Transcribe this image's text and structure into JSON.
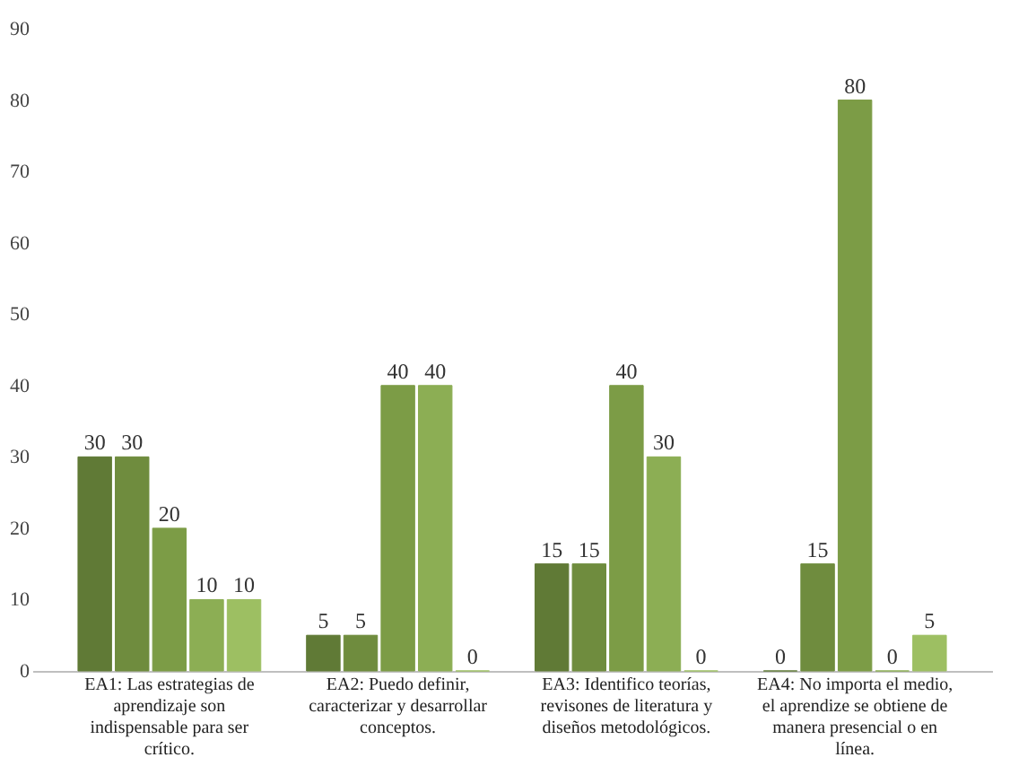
{
  "chart_data": {
    "type": "bar",
    "categories": [
      "EA1: Las estrategias de aprendizaje son indispensable para ser crítico.",
      "EA2: Puedo definir, caracterizar y desarrollar conceptos.",
      "EA3: Identifico teorías, revisones de literatura y diseños metodológicos.",
      "EA4: No importa el medio, el aprendize se obtiene de manera presencial o  en línea."
    ],
    "series": [
      {
        "color": "#607a36",
        "values": [
          30,
          5,
          15,
          0
        ]
      },
      {
        "color": "#6f8c3e",
        "values": [
          30,
          5,
          15,
          15
        ]
      },
      {
        "color": "#7c9c46",
        "values": [
          20,
          40,
          40,
          80
        ]
      },
      {
        "color": "#8cae54",
        "values": [
          10,
          40,
          30,
          0
        ]
      },
      {
        "color": "#9dbf62",
        "values": [
          10,
          0,
          0,
          5
        ]
      }
    ],
    "ylim": [
      0,
      90
    ],
    "yticks": [
      0,
      10,
      20,
      30,
      40,
      50,
      60,
      70,
      80,
      90
    ],
    "grid": false,
    "legend": false,
    "data_labels": true
  }
}
